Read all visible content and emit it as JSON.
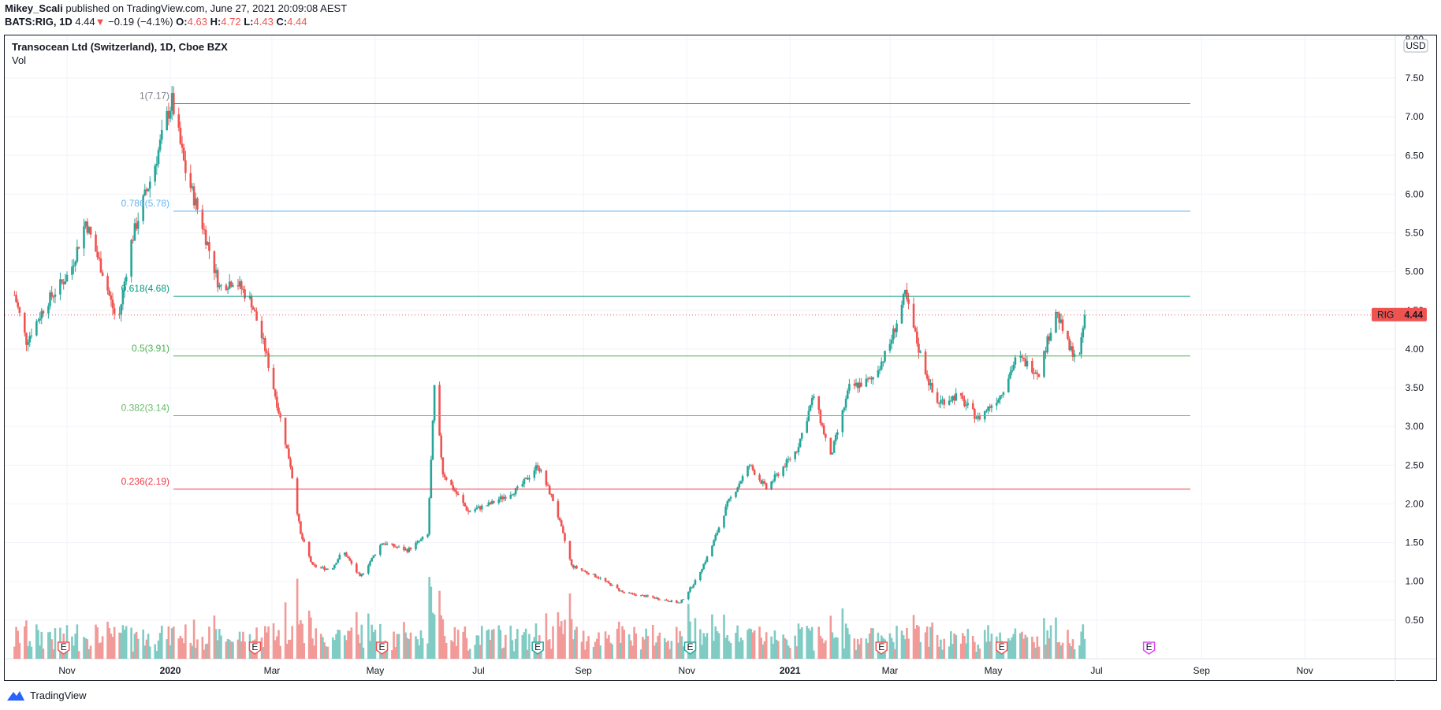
{
  "header": {
    "user": "Mikey_Scali",
    "published": "published on TradingView.com, June 27, 2021 20:09:08 AEST",
    "symbol": "BATS:RIG, 1D",
    "last": "4.44",
    "change": "−0.19 (−4.1%)",
    "o_label": "O:",
    "o_val": "4.63",
    "h_label": "H:",
    "h_val": "4.72",
    "l_label": "L:",
    "l_val": "4.43",
    "c_label": "C:",
    "c_val": "4.44"
  },
  "legend": {
    "title": "Transocean Ltd (Switzerland), 1D, Cboe BZX",
    "vol": "Vol"
  },
  "price_scale": {
    "currency": "USD",
    "price_tag_symbol": "RIG",
    "price_tag_value": "4.44"
  },
  "footer": {
    "brand": "TradingView"
  },
  "colors": {
    "up": "#26a69a",
    "down": "#ef5350",
    "vol_up": "#80cbc4",
    "vol_down": "#f19a98",
    "grid": "#f0f3fa"
  },
  "chart_data": {
    "type": "candlestick",
    "title": "Transocean Ltd (Switzerland), 1D, Cboe BZX",
    "y_ticks": [
      "0.50",
      "1.00",
      "1.50",
      "2.00",
      "2.50",
      "3.00",
      "3.50",
      "4.00",
      "4.50",
      "5.00",
      "5.50",
      "6.00",
      "6.50",
      "7.00",
      "7.50",
      "8.00"
    ],
    "x_ticks": [
      "Nov",
      "2020",
      "Mar",
      "May",
      "Jul",
      "Sep",
      "Nov",
      "2021",
      "Mar",
      "May",
      "Jul",
      "Sep",
      "Nov"
    ],
    "ylim": [
      0,
      8.05
    ],
    "last_price": 4.44,
    "fib_levels": [
      {
        "ratio": "1",
        "price": 7.17,
        "label": "1(7.17)",
        "color": "#787b86"
      },
      {
        "ratio": "0.786",
        "price": 5.78,
        "label": "0.786(5.78)",
        "color": "#64b5f6"
      },
      {
        "ratio": "0.618",
        "price": 4.68,
        "label": "0.618(4.68)",
        "color": "#089981"
      },
      {
        "ratio": "0.5",
        "price": 3.91,
        "label": "0.5(3.91)",
        "color": "#4caf50"
      },
      {
        "ratio": "0.382",
        "price": 3.14,
        "label": "0.382(3.14)",
        "color": "#66bb6a"
      },
      {
        "ratio": "0.236",
        "price": 2.19,
        "label": "0.236(2.19)",
        "color": "#f23645"
      }
    ],
    "price_path": [
      [
        "2019-10-01",
        4.7
      ],
      [
        "2019-10-08",
        4.1
      ],
      [
        "2019-10-20",
        4.6
      ],
      [
        "2019-11-03",
        5.0
      ],
      [
        "2019-11-12",
        5.65
      ],
      [
        "2019-11-22",
        5.0
      ],
      [
        "2019-12-01",
        4.3
      ],
      [
        "2019-12-08",
        5.3
      ],
      [
        "2019-12-15",
        5.85
      ],
      [
        "2019-12-22",
        6.3
      ],
      [
        "2019-12-30",
        7.0
      ],
      [
        "2020-01-02",
        7.2
      ],
      [
        "2020-01-10",
        6.3
      ],
      [
        "2020-01-20",
        5.6
      ],
      [
        "2020-01-30",
        4.8
      ],
      [
        "2020-02-08",
        4.9
      ],
      [
        "2020-02-18",
        4.6
      ],
      [
        "2020-02-26",
        4.0
      ],
      [
        "2020-03-06",
        3.1
      ],
      [
        "2020-03-12",
        2.5
      ],
      [
        "2020-03-18",
        1.6
      ],
      [
        "2020-03-25",
        1.2
      ],
      [
        "2020-04-05",
        1.15
      ],
      [
        "2020-04-12",
        1.4
      ],
      [
        "2020-04-22",
        1.05
      ],
      [
        "2020-05-05",
        1.5
      ],
      [
        "2020-05-20",
        1.4
      ],
      [
        "2020-06-01",
        1.6
      ],
      [
        "2020-06-05",
        3.5
      ],
      [
        "2020-06-10",
        2.4
      ],
      [
        "2020-06-25",
        1.9
      ],
      [
        "2020-07-08",
        2.0
      ],
      [
        "2020-07-25",
        2.2
      ],
      [
        "2020-08-05",
        2.5
      ],
      [
        "2020-08-15",
        2.0
      ],
      [
        "2020-08-25",
        1.2
      ],
      [
        "2020-09-10",
        1.05
      ],
      [
        "2020-09-25",
        0.85
      ],
      [
        "2020-10-10",
        0.8
      ],
      [
        "2020-10-28",
        0.72
      ],
      [
        "2020-11-06",
        1.0
      ],
      [
        "2020-11-15",
        1.4
      ],
      [
        "2020-11-25",
        2.0
      ],
      [
        "2020-12-08",
        2.5
      ],
      [
        "2020-12-18",
        2.2
      ],
      [
        "2021-01-05",
        2.7
      ],
      [
        "2021-01-15",
        3.4
      ],
      [
        "2021-01-25",
        2.6
      ],
      [
        "2021-02-05",
        3.5
      ],
      [
        "2021-02-18",
        3.6
      ],
      [
        "2021-02-28",
        4.0
      ],
      [
        "2021-03-10",
        4.7
      ],
      [
        "2021-03-18",
        4.0
      ],
      [
        "2021-03-28",
        3.3
      ],
      [
        "2021-04-10",
        3.4
      ],
      [
        "2021-04-22",
        3.1
      ],
      [
        "2021-05-05",
        3.4
      ],
      [
        "2021-05-15",
        3.9
      ],
      [
        "2021-05-28",
        3.7
      ],
      [
        "2021-06-07",
        4.5
      ],
      [
        "2021-06-15",
        4.0
      ],
      [
        "2021-06-21",
        3.9
      ],
      [
        "2021-06-25",
        4.63
      ]
    ],
    "earnings_markers": [
      {
        "date": "2019-10-30",
        "label": "E",
        "color": "#ef5350"
      },
      {
        "date": "2020-02-20",
        "label": "E",
        "color": "#ef5350"
      },
      {
        "date": "2020-05-05",
        "label": "E",
        "color": "#ef5350"
      },
      {
        "date": "2020-08-05",
        "label": "E",
        "color": "#26a69a"
      },
      {
        "date": "2020-11-03",
        "label": "E",
        "color": "#26a69a"
      },
      {
        "date": "2021-02-24",
        "label": "E",
        "color": "#ef5350"
      },
      {
        "date": "2021-05-06",
        "label": "E",
        "color": "#ef5350"
      },
      {
        "date": "2021-08-01",
        "label": "E",
        "color": "#e040fb"
      }
    ]
  }
}
